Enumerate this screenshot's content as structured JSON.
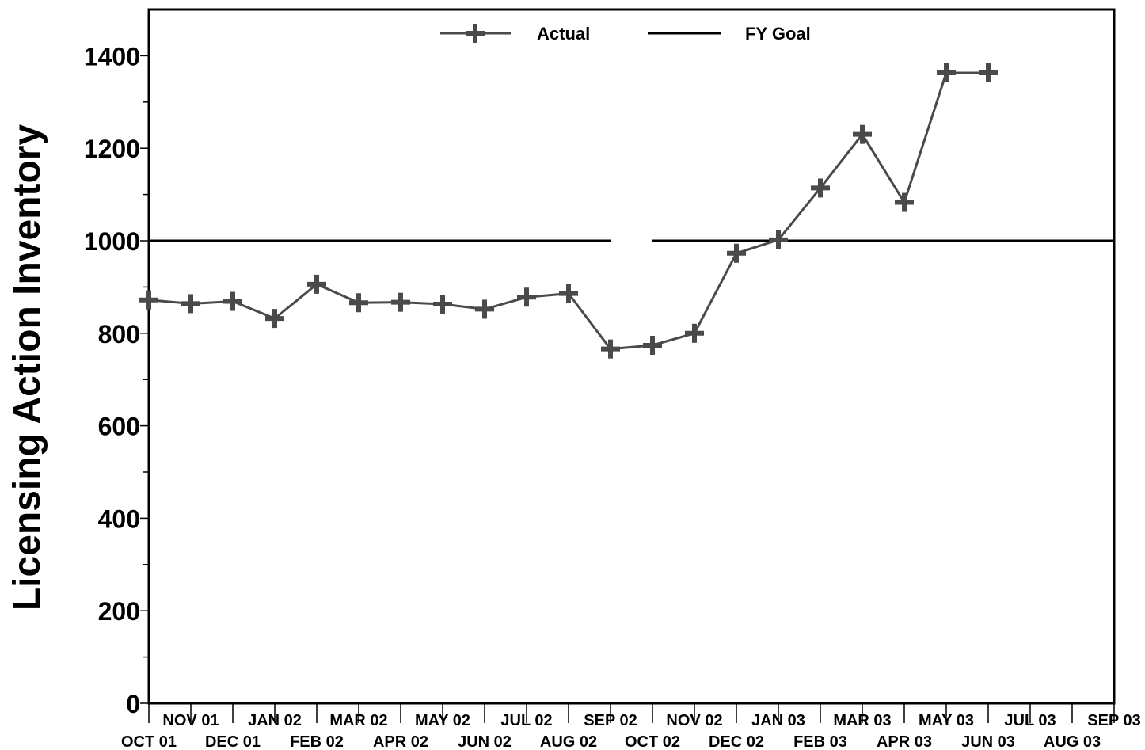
{
  "chart_data": {
    "type": "line",
    "title": "",
    "xlabel": "",
    "ylabel": "Licensing Action Inventory",
    "ylim": [
      0,
      1500
    ],
    "y_ticks": [
      0,
      200,
      400,
      600,
      800,
      1000,
      1200,
      1400
    ],
    "grid": false,
    "legend_position": "top-center",
    "categories": [
      "OCT 01",
      "NOV 01",
      "DEC 01",
      "JAN 02",
      "FEB 02",
      "MAR 02",
      "APR 02",
      "MAY 02",
      "JUN 02",
      "JUL 02",
      "AUG 02",
      "SEP 02",
      "OCT 02",
      "NOV 02",
      "DEC 02",
      "JAN 03",
      "FEB 03",
      "MAR 03",
      "APR 03",
      "MAY 03",
      "JUN 03",
      "JUL 03",
      "AUG 03",
      "SEP 03"
    ],
    "series": [
      {
        "name": "Actual",
        "color": "#4a4a4a",
        "marker": "plus",
        "values": [
          872,
          864,
          869,
          832,
          906,
          866,
          867,
          863,
          852,
          878,
          886,
          766,
          774,
          800,
          973,
          1002,
          1114,
          1230,
          1083,
          1363,
          1363,
          null,
          null,
          null
        ]
      },
      {
        "name": "FY Goal",
        "color": "#000000",
        "marker": "none",
        "segments": [
          {
            "from": "OCT 01",
            "to": "SEP 02",
            "value": 1000
          },
          {
            "from": "OCT 02",
            "to": "SEP 03",
            "value": 1000
          }
        ]
      }
    ]
  }
}
